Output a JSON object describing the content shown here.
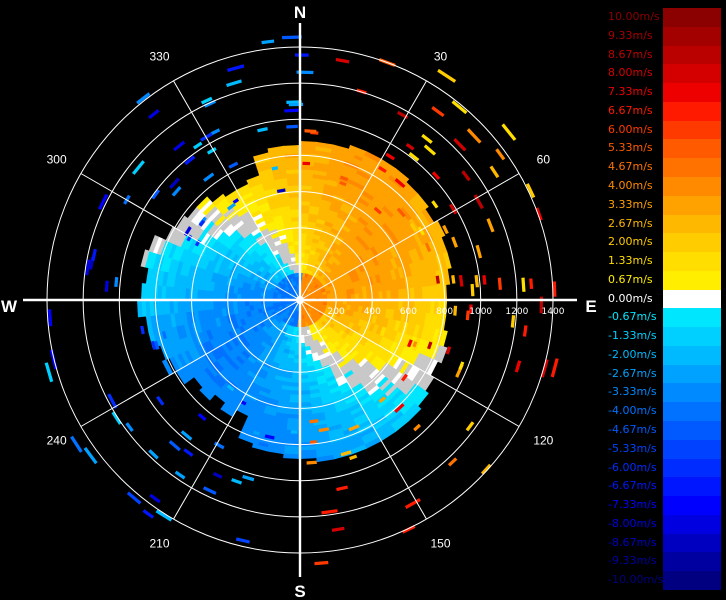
{
  "chart_data": {
    "type": "polar-heatmap",
    "title": "",
    "compass": {
      "north": "N",
      "east": "E",
      "south": "S",
      "west": "W"
    },
    "angle_labels": [
      {
        "deg": 30,
        "text": "30"
      },
      {
        "deg": 60,
        "text": "60"
      },
      {
        "deg": 120,
        "text": "120"
      },
      {
        "deg": 150,
        "text": "150"
      },
      {
        "deg": 210,
        "text": "210"
      },
      {
        "deg": 240,
        "text": "240"
      },
      {
        "deg": 300,
        "text": "300"
      },
      {
        "deg": 330,
        "text": "330"
      }
    ],
    "range_rings": [
      200,
      400,
      600,
      800,
      1000,
      1200,
      1400
    ],
    "range_max": 1400,
    "grid": true,
    "colorbar": {
      "position": "right",
      "entries": [
        {
          "label": "10.00m/s",
          "color": "#8b0000"
        },
        {
          "label": "9.33m/s",
          "color": "#a30000"
        },
        {
          "label": "8.67m/s",
          "color": "#bb0000"
        },
        {
          "label": "8.00m/s",
          "color": "#d40000"
        },
        {
          "label": "7.33m/s",
          "color": "#ee0000"
        },
        {
          "label": "6.67m/s",
          "color": "#ff1a00"
        },
        {
          "label": "6.00m/s",
          "color": "#ff3a00"
        },
        {
          "label": "5.33m/s",
          "color": "#ff5a00"
        },
        {
          "label": "4.67m/s",
          "color": "#ff7200"
        },
        {
          "label": "4.00m/s",
          "color": "#ff8a00"
        },
        {
          "label": "3.33m/s",
          "color": "#ffa200"
        },
        {
          "label": "2.67m/s",
          "color": "#ffb800"
        },
        {
          "label": "2.00m/s",
          "color": "#ffcc00"
        },
        {
          "label": "1.33m/s",
          "color": "#ffde00"
        },
        {
          "label": "0.67m/s",
          "color": "#ffee00"
        },
        {
          "label": "0.00m/s",
          "color": "#ffffff"
        },
        {
          "label": "-0.67m/s",
          "color": "#00e6ff"
        },
        {
          "label": "-1.33m/s",
          "color": "#00d0ff"
        },
        {
          "label": "-2.00m/s",
          "color": "#00baff"
        },
        {
          "label": "-2.67m/s",
          "color": "#00a2ff"
        },
        {
          "label": "-3.33m/s",
          "color": "#008aff"
        },
        {
          "label": "-4.00m/s",
          "color": "#0072ff"
        },
        {
          "label": "-4.67m/s",
          "color": "#005aff"
        },
        {
          "label": "-5.33m/s",
          "color": "#0042ff"
        },
        {
          "label": "-6.00m/s",
          "color": "#002cff"
        },
        {
          "label": "-6.67m/s",
          "color": "#0016ff"
        },
        {
          "label": "-7.33m/s",
          "color": "#0000ff"
        },
        {
          "label": "-8.00m/s",
          "color": "#0000e0"
        },
        {
          "label": "-8.67m/s",
          "color": "#0000c0"
        },
        {
          "label": "-9.33m/s",
          "color": "#0000a0"
        },
        {
          "label": "-10.00m/s",
          "color": "#000080"
        }
      ]
    },
    "fields": {
      "west_half": "negative velocity (blue/cyan), about -2 to -4 m/s",
      "east_half": "positive velocity (yellow/orange), about 2 to 4 m/s"
    },
    "max_dense_range": 880
  }
}
